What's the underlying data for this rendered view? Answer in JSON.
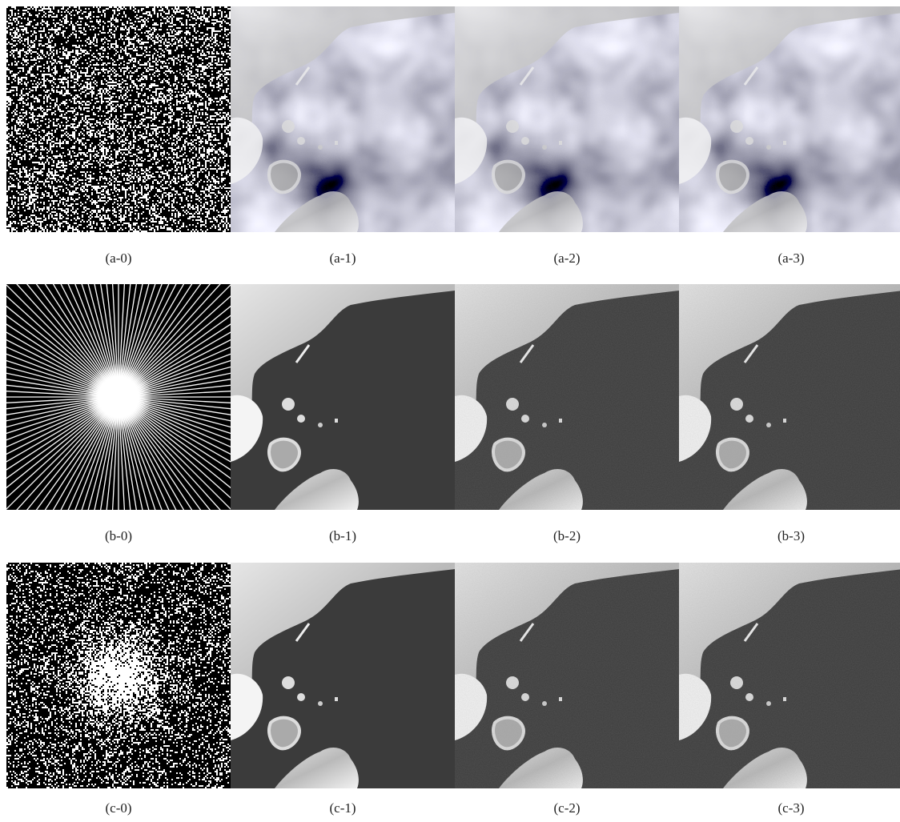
{
  "panels": [
    [
      "(a-0)",
      "(a-1)",
      "(a-2)",
      "(a-3)"
    ],
    [
      "(b-0)",
      "(b-1)",
      "(b-2)",
      "(b-3)"
    ],
    [
      "(c-0)",
      "(c-1)",
      "(c-2)",
      "(c-3)"
    ]
  ]
}
